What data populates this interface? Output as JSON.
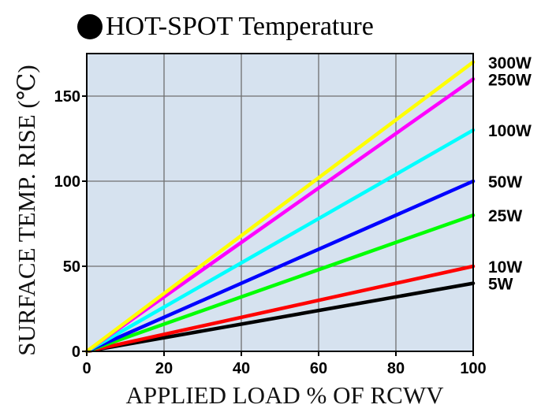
{
  "chart_data": {
    "type": "line",
    "title": "HOT-SPOT Temperature",
    "xlabel": "APPLIED LOAD % OF RCWV",
    "ylabel": "SURFACE TEMP. RISE (℃)",
    "xlim": [
      0,
      100
    ],
    "ylim": [
      0,
      175
    ],
    "x_ticks": [
      0,
      20,
      40,
      60,
      80,
      100
    ],
    "y_ticks": [
      0,
      50,
      100,
      150
    ],
    "grid": true,
    "legend": "right",
    "background_color": "#d6e2ef",
    "series": [
      {
        "name": "300W",
        "color": "#ffff00",
        "x": [
          0,
          100
        ],
        "y": [
          0,
          170
        ]
      },
      {
        "name": "250W",
        "color": "#ff00ff",
        "x": [
          0,
          100
        ],
        "y": [
          0,
          160
        ]
      },
      {
        "name": "100W",
        "color": "#00ffff",
        "x": [
          0,
          100
        ],
        "y": [
          0,
          130
        ]
      },
      {
        "name": "50W",
        "color": "#0000ff",
        "x": [
          0,
          100
        ],
        "y": [
          0,
          100
        ]
      },
      {
        "name": "25W",
        "color": "#00ff00",
        "x": [
          0,
          100
        ],
        "y": [
          0,
          80
        ]
      },
      {
        "name": "10W",
        "color": "#ff0000",
        "x": [
          0,
          100
        ],
        "y": [
          0,
          50
        ]
      },
      {
        "name": "5W",
        "color": "#000000",
        "x": [
          0,
          100
        ],
        "y": [
          0,
          40
        ]
      }
    ]
  }
}
